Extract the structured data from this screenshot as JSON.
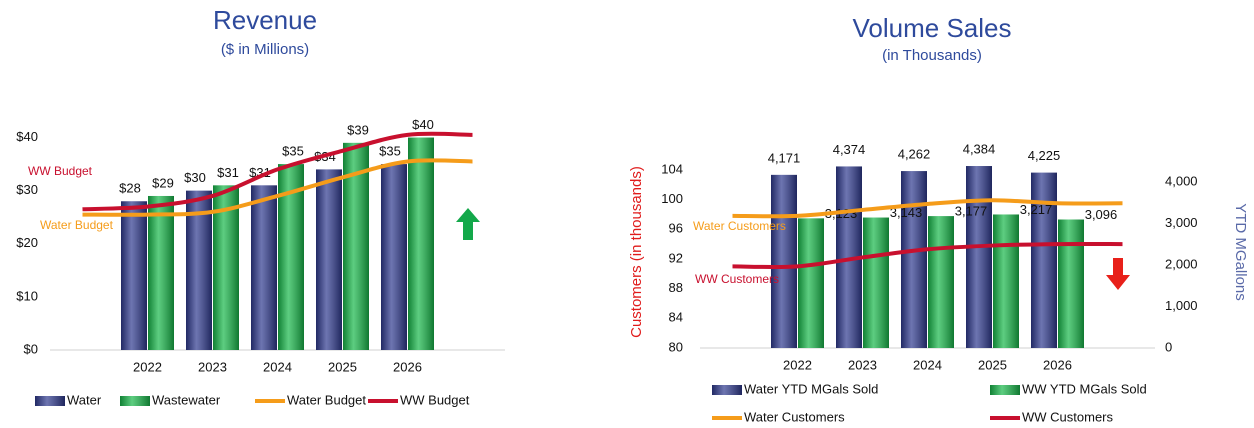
{
  "chart_data": [
    {
      "type": "bar",
      "title": "Revenue",
      "subtitle": "($ in Millions)",
      "categories": [
        null,
        "2022",
        "2023",
        "2024",
        "2025",
        "2026",
        null
      ],
      "series": [
        {
          "name": "Water",
          "type": "bar",
          "color": "#2f3a8f",
          "values": [
            null,
            28,
            30,
            31,
            34,
            35,
            null
          ],
          "value_labels": [
            null,
            "$28",
            "$30",
            "$31",
            "$34",
            "$35",
            null
          ]
        },
        {
          "name": "Wastewater",
          "type": "bar",
          "color": "#18b84a",
          "values": [
            null,
            29,
            31,
            35,
            39,
            40,
            null
          ],
          "value_labels": [
            null,
            "$29",
            "$31",
            "$35",
            "$39",
            "$40",
            null
          ]
        },
        {
          "name": "Water Budget",
          "type": "line",
          "color": "#f59c1a",
          "values": [
            25.5,
            25.5,
            26,
            29,
            32.5,
            35.5,
            35.5
          ]
        },
        {
          "name": "WW Budget",
          "type": "line",
          "color": "#c8102e",
          "values": [
            26.5,
            27,
            29,
            34,
            37.5,
            40.5,
            40.5
          ]
        }
      ],
      "ylim": [
        0,
        45
      ],
      "yticks": [
        {
          "value": 0,
          "label": "$0"
        },
        {
          "value": 10,
          "label": "$10"
        },
        {
          "value": 20,
          "label": "$20"
        },
        {
          "value": 30,
          "label": "$30"
        },
        {
          "value": 40,
          "label": "$40"
        }
      ],
      "grid": false,
      "legend": "bottom"
    },
    {
      "type": "bar",
      "title": "Volume Sales",
      "subtitle": "(in Thousands)",
      "ylabel": "Customers (in thousands)",
      "y2label": "YTD MGallons",
      "categories": [
        null,
        "2022",
        "2023",
        "2024",
        "2025",
        "2026",
        null
      ],
      "series": [
        {
          "name": "Water YTD MGals Sold",
          "type": "bar",
          "axis": "y2",
          "color": "#2f3a8f",
          "values": [
            null,
            4171,
            4374,
            4262,
            4384,
            4225,
            null
          ],
          "value_labels": [
            null,
            "4,171",
            "4,374",
            "4,262",
            "4,384",
            "4,225",
            null
          ]
        },
        {
          "name": "WW YTD MGals Sold",
          "type": "bar",
          "axis": "y2",
          "color": "#18b84a",
          "values": [
            null,
            3123,
            3143,
            3177,
            3217,
            3096,
            null
          ],
          "value_labels": [
            null,
            "3,123",
            "3,143",
            "3,177",
            "3,217",
            "3,096",
            null
          ]
        },
        {
          "name": "Water Customers",
          "type": "line",
          "color": "#f59c1a",
          "values": [
            97.8,
            97.8,
            98.6,
            99.4,
            99.9,
            99.5,
            99.5
          ]
        },
        {
          "name": "WW Customers",
          "type": "line",
          "color": "#c8102e",
          "values": [
            91,
            91,
            92.2,
            93.3,
            93.8,
            94,
            94
          ]
        }
      ],
      "ylim": [
        80,
        106
      ],
      "yticks": [
        80,
        84,
        88,
        92,
        96,
        100,
        104
      ],
      "y2lim": [
        0,
        4650
      ],
      "y2ticks": [
        0,
        {
          "value": 1000,
          "label": "1,000"
        },
        {
          "value": 2000,
          "label": "2,000"
        },
        {
          "value": 3000,
          "label": "3,000"
        },
        {
          "value": 4000,
          "label": "4,000"
        }
      ],
      "grid": false,
      "legend": "bottom"
    }
  ]
}
